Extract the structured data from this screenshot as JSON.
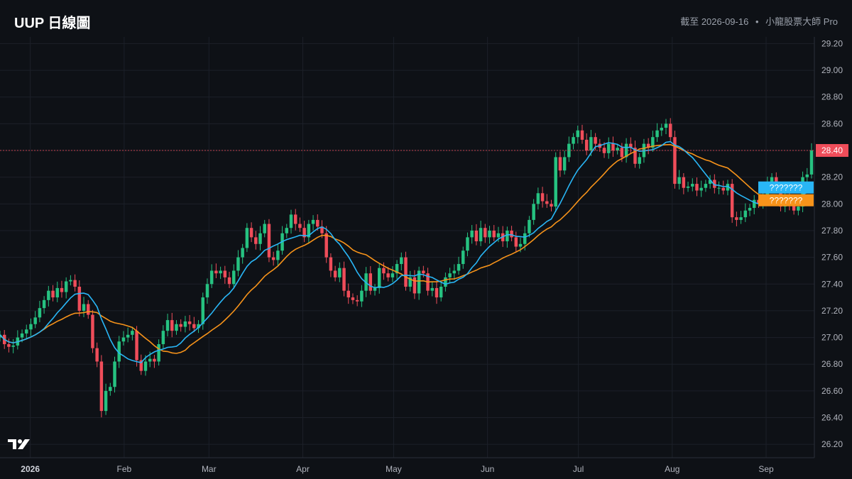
{
  "header": {
    "title": "UUP 日線圖",
    "meta_date": "截至 2026-09-16",
    "meta_sep": "•",
    "meta_source": "小龍股票大師 Pro"
  },
  "colors": {
    "background": "#0e1116",
    "grid": "#1c2029",
    "up": "#26c281",
    "down": "#ef4d5a",
    "ma_fast": "#29b6f6",
    "ma_slow": "#f7931a",
    "last_price_line": "#ef4d5a"
  },
  "chart_data": {
    "type": "candlestick",
    "y_axis": {
      "range": [
        26.1,
        29.25
      ],
      "ticks": [
        "26.20",
        "26.40",
        "26.60",
        "26.80",
        "27.00",
        "27.20",
        "27.40",
        "27.60",
        "27.80",
        "28.00",
        "28.20",
        "28.40",
        "28.60",
        "28.80",
        "29.00",
        "29.20"
      ]
    },
    "x_axis": {
      "date_range": [
        "2025-12-22",
        "2026-09-16"
      ],
      "ticks": [
        {
          "label": "2026",
          "date": "2026-01-01",
          "bold": true
        },
        {
          "label": "Feb",
          "date": "2026-02-01"
        },
        {
          "label": "Mar",
          "date": "2026-03-01"
        },
        {
          "label": "Apr",
          "date": "2026-04-01"
        },
        {
          "label": "May",
          "date": "2026-05-01"
        },
        {
          "label": "Jun",
          "date": "2026-06-01"
        },
        {
          "label": "Jul",
          "date": "2026-07-01"
        },
        {
          "label": "Aug",
          "date": "2026-08-01"
        },
        {
          "label": "Sep",
          "date": "2026-09-01"
        }
      ]
    },
    "last_price": 28.4,
    "last_price_label": "28.40",
    "ma_fast_label": "???????",
    "ma_slow_label": "???????",
    "ma_fast_last": 28.12,
    "ma_slow_last": 28.03,
    "candles_close": [
      27.02,
      26.95,
      26.93,
      26.94,
      27.0,
      27.03,
      27.06,
      27.1,
      27.15,
      27.22,
      27.28,
      27.35,
      27.3,
      27.37,
      27.34,
      27.42,
      27.43,
      27.38,
      27.2,
      27.25,
      27.17,
      26.92,
      26.82,
      26.45,
      26.6,
      26.63,
      26.82,
      26.97,
      27.0,
      27.02,
      27.05,
      26.83,
      26.75,
      26.82,
      26.84,
      26.82,
      26.95,
      27.05,
      27.13,
      27.05,
      27.1,
      27.08,
      27.12,
      27.1,
      27.07,
      27.1,
      27.3,
      27.4,
      27.5,
      27.48,
      27.5,
      27.45,
      27.4,
      27.5,
      27.6,
      27.67,
      27.82,
      27.75,
      27.7,
      27.78,
      27.85,
      27.6,
      27.58,
      27.65,
      27.78,
      27.82,
      27.92,
      27.85,
      27.82,
      27.75,
      27.85,
      27.88,
      27.83,
      27.78,
      27.6,
      27.5,
      27.45,
      27.52,
      27.35,
      27.3,
      27.28,
      27.27,
      27.35,
      27.48,
      27.35,
      27.37,
      27.52,
      27.48,
      27.45,
      27.48,
      27.55,
      27.6,
      27.38,
      27.45,
      27.33,
      27.5,
      27.48,
      27.35,
      27.37,
      27.3,
      27.38,
      27.45,
      27.48,
      27.5,
      27.55,
      27.65,
      27.75,
      27.8,
      27.72,
      27.82,
      27.75,
      27.8,
      27.75,
      27.78,
      27.72,
      27.8,
      27.75,
      27.68,
      27.7,
      27.78,
      27.88,
      28.0,
      28.08,
      28.02,
      28.0,
      27.98,
      28.35,
      28.25,
      28.35,
      28.45,
      28.5,
      28.55,
      28.48,
      28.4,
      28.5,
      28.45,
      28.42,
      28.38,
      28.45,
      28.4,
      28.42,
      28.35,
      28.45,
      28.42,
      28.3,
      28.35,
      28.45,
      28.42,
      28.5,
      28.55,
      28.57,
      28.6,
      28.5,
      28.15,
      28.2,
      28.12,
      28.13,
      28.15,
      28.1,
      28.12,
      28.15,
      28.18,
      28.12,
      28.12,
      28.1,
      28.15,
      27.9,
      27.88,
      27.9,
      27.95,
      27.97,
      28.03,
      28.0,
      28.07,
      28.15,
      28.2,
      28.12,
      27.98,
      28.05,
      28.0,
      27.95,
      27.98,
      28.2,
      28.22,
      28.4
    ]
  }
}
